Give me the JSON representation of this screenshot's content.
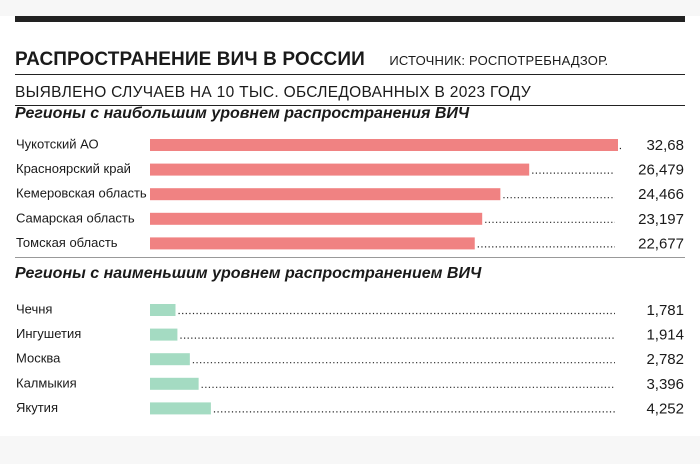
{
  "header": {
    "title": "РАСПРОСТРАНЕНИЕ ВИЧ В РОССИИ",
    "source": "ИСТОЧНИК: РОСПОТРЕБНАДЗОР."
  },
  "subtitle": "ВЫЯВЛЕНО СЛУЧАЕВ НА 10 ТЫС. ОБСЛЕДОВАННЫХ В 2023 ГОДУ",
  "colors": {
    "top_bar": "#f08282",
    "bottom_bar": "#a4dbc2",
    "dots": "#222222"
  },
  "chart_data": [
    {
      "type": "bar",
      "orientation": "horizontal",
      "title": "Регионы с наибольшим уровнем распространения ВИЧ",
      "categories": [
        "Чукотский АО",
        "Красноярский край",
        "Кемеровская область",
        "Самарская область",
        "Томская область"
      ],
      "values": [
        32.68,
        26.479,
        24.466,
        23.197,
        22.677
      ],
      "value_labels": [
        "32,68",
        "26,479",
        "24,466",
        "23,197",
        "22,677"
      ],
      "xlim": [
        0,
        32.68
      ],
      "grid": false,
      "legend": "none"
    },
    {
      "type": "bar",
      "orientation": "horizontal",
      "title": "Регионы с наименьшим уровнем распространением ВИЧ",
      "categories": [
        "Чечня",
        "Ингушетия",
        "Москва",
        "Калмыкия",
        "Якутия"
      ],
      "values": [
        1.781,
        1.914,
        2.782,
        3.396,
        4.252
      ],
      "value_labels": [
        "1,781",
        "1,914",
        "2,782",
        "3,396",
        "4,252"
      ],
      "xlim": [
        0,
        32.68
      ],
      "grid": false,
      "legend": "none"
    }
  ]
}
